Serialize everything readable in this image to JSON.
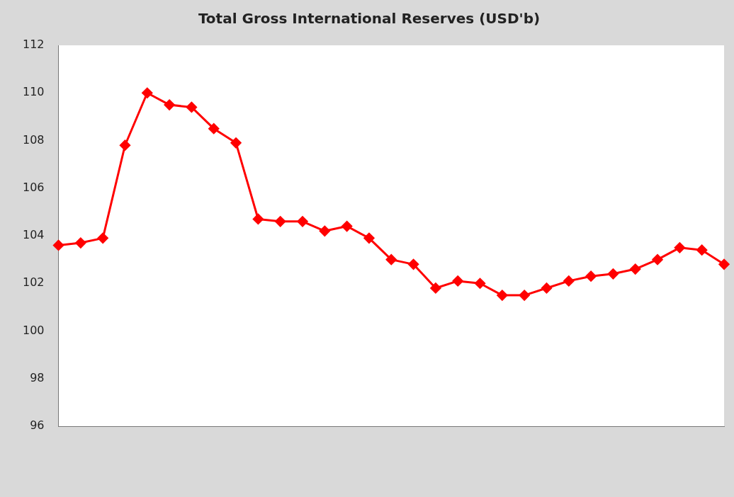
{
  "chart_data": {
    "type": "line",
    "title": "Total Gross International Reserves (USD'b)",
    "categories": [
      null,
      null,
      null,
      null,
      null,
      null,
      null,
      null,
      null,
      null,
      null,
      null,
      null,
      null,
      null,
      null,
      null,
      null,
      null,
      null,
      null,
      null,
      null,
      null,
      null,
      null,
      null,
      null,
      null,
      null,
      null
    ],
    "series": [
      {
        "color": "#ff0000",
        "values": [
          103.6,
          103.7,
          103.9,
          107.8,
          110.0,
          109.5,
          109.4,
          108.5,
          107.9,
          104.7,
          104.6,
          104.6,
          104.2,
          104.4,
          103.9,
          103.0,
          102.8,
          101.8,
          102.1,
          102.0,
          101.5,
          101.5,
          101.8,
          102.1,
          102.3,
          102.4,
          102.6,
          103.0,
          103.5,
          103.4,
          102.8
        ]
      }
    ],
    "ylim": [
      96,
      112
    ],
    "yticks": [
      96,
      98,
      100,
      102,
      104,
      106,
      108,
      110,
      112
    ],
    "grid": false,
    "legend": false,
    "marker": "diamond",
    "line_style": "solid",
    "tick_labels": "y"
  }
}
